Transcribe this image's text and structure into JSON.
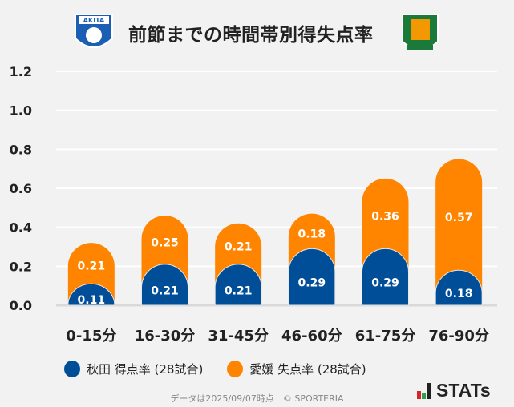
{
  "title": "前節までの時間帯別得失点率",
  "logos": {
    "left": "AKITA BLAUBLITZ",
    "right": "EHIME FC"
  },
  "colors": {
    "akita": "#004e98",
    "ehime": "#ff8500"
  },
  "chart_data": {
    "type": "bar",
    "stacked": true,
    "title": "前節までの時間帯別得失点率",
    "categories": [
      "0-15分",
      "16-30分",
      "31-45分",
      "46-60分",
      "61-75分",
      "76-90分"
    ],
    "series": [
      {
        "name": "秋田 得点率 (28試合)",
        "values": [
          0.11,
          0.21,
          0.21,
          0.29,
          0.29,
          0.18
        ]
      },
      {
        "name": "愛媛 失点率 (28試合)",
        "values": [
          0.21,
          0.25,
          0.21,
          0.18,
          0.36,
          0.57
        ]
      }
    ],
    "yticks": [
      "0.0",
      "0.2",
      "0.4",
      "0.6",
      "0.8",
      "1.0",
      "1.2"
    ],
    "ylim": [
      0,
      1.2
    ],
    "grid": true,
    "legend": "bottom"
  },
  "footer": "データは2025/09/07時点　© SPORTERIA",
  "brand": "STATs"
}
